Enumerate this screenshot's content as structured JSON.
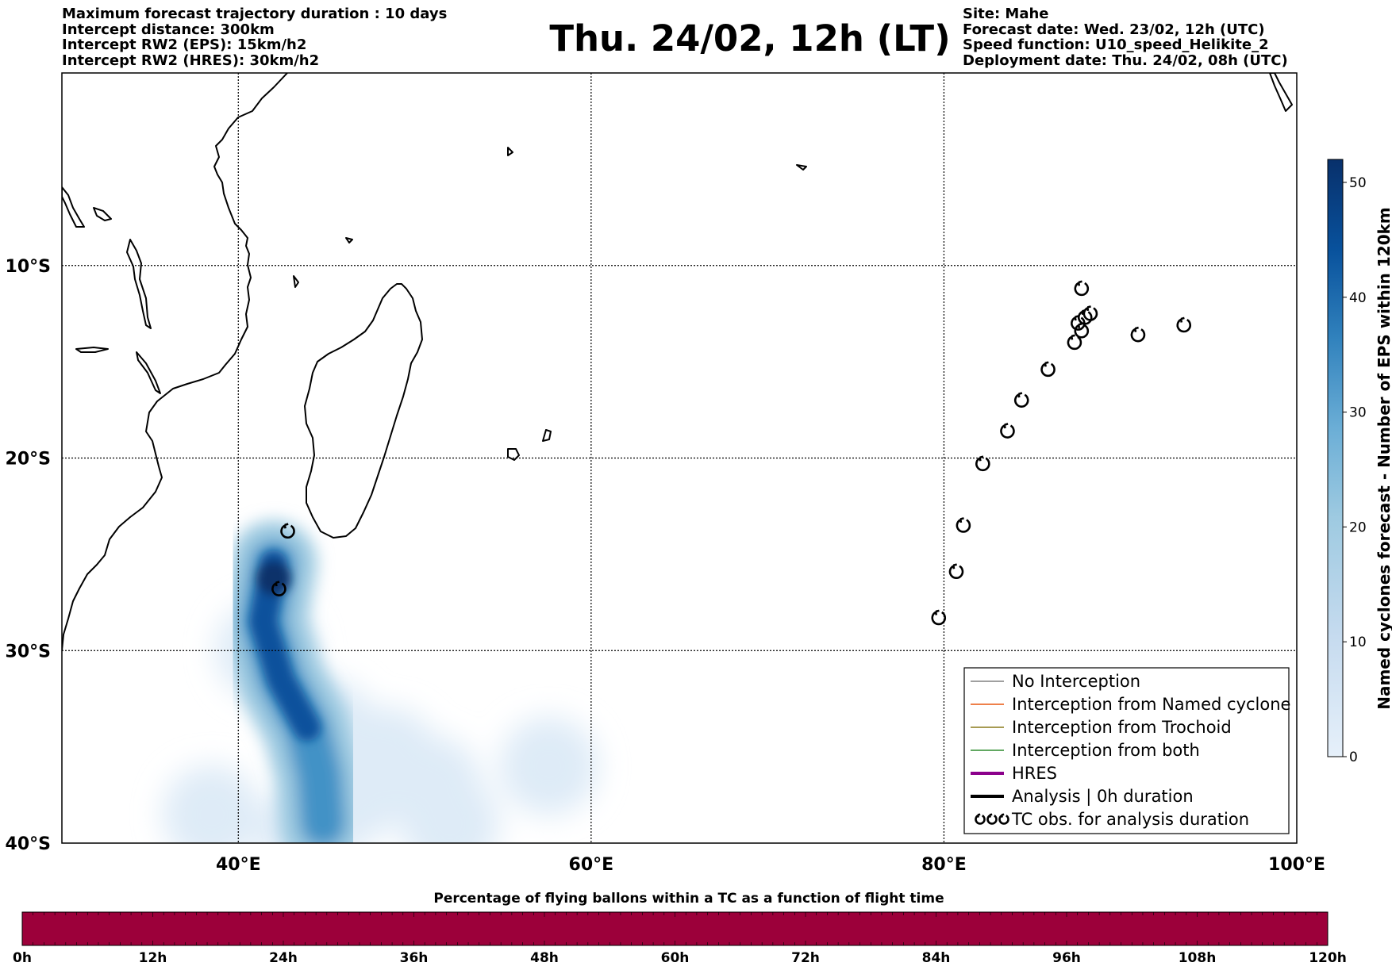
{
  "header": {
    "left": [
      "Maximum forecast trajectory duration : 10 days",
      "Intercept distance: 300km",
      "Intercept RW2 (EPS):  15km/h2",
      "Intercept RW2 (HRES): 30km/h2"
    ],
    "title": "Thu. 24/02, 12h (LT)",
    "right": [
      "Site: Mahe",
      "Forecast date: Wed. 23/02, 12h (UTC)",
      "Speed function: U10_speed_Helikite_2",
      "Deployment date: Thu. 24/02, 08h (UTC)"
    ]
  },
  "map": {
    "lon_range": [
      30,
      100
    ],
    "lat_range": [
      -40,
      0
    ],
    "lon_ticks": [
      {
        "value": 40,
        "label": "40°E"
      },
      {
        "value": 60,
        "label": "60°E"
      },
      {
        "value": 80,
        "label": "80°E"
      },
      {
        "value": 100,
        "label": "100°E"
      }
    ],
    "lat_ticks": [
      {
        "value": -10,
        "label": "10°S"
      },
      {
        "value": -20,
        "label": "20°S"
      },
      {
        "value": -30,
        "label": "30°S"
      },
      {
        "value": -40,
        "label": "40°S"
      }
    ],
    "grid": true,
    "tc_observations": [
      {
        "lon": 42.8,
        "lat": -23.8
      },
      {
        "lon": 42.3,
        "lat": -26.8
      },
      {
        "lon": 87.8,
        "lat": -11.2
      },
      {
        "lon": 87.6,
        "lat": -13.0
      },
      {
        "lon": 88.0,
        "lat": -12.7
      },
      {
        "lon": 88.3,
        "lat": -12.5
      },
      {
        "lon": 87.8,
        "lat": -13.4
      },
      {
        "lon": 87.4,
        "lat": -14.0
      },
      {
        "lon": 91.0,
        "lat": -13.6
      },
      {
        "lon": 93.6,
        "lat": -13.1
      },
      {
        "lon": 85.9,
        "lat": -15.4
      },
      {
        "lon": 84.4,
        "lat": -17.0
      },
      {
        "lon": 83.6,
        "lat": -18.6
      },
      {
        "lon": 82.2,
        "lat": -20.3
      },
      {
        "lon": 81.1,
        "lat": -23.5
      },
      {
        "lon": 80.7,
        "lat": -25.9
      },
      {
        "lon": 79.7,
        "lat": -28.3
      }
    ],
    "density": {
      "core_path": [
        [
          42.0,
          -25.5
        ],
        [
          41.4,
          -28.5
        ],
        [
          42.4,
          -31.5
        ],
        [
          43.9,
          -34.0
        ],
        [
          44.6,
          -36.5
        ],
        [
          44.8,
          -39.0
        ]
      ],
      "outer_blobs": [
        [
          41.5,
          -30.0
        ],
        [
          45.0,
          -34.0
        ],
        [
          46.5,
          -37.5
        ],
        [
          48.5,
          -35.5
        ],
        [
          52.0,
          -39.0
        ],
        [
          51.0,
          -37.0
        ],
        [
          57.6,
          -36.0
        ],
        [
          38.5,
          -38.5
        ],
        [
          44.0,
          -39.5
        ]
      ]
    },
    "colorbar": {
      "label": "Named cyclones forecast - Number of EPS within 120km",
      "min": 0,
      "max": 52,
      "ticks": [
        0,
        10,
        20,
        30,
        40,
        50
      ],
      "color_low": "#e6f0fa",
      "color_high": "#08306b"
    },
    "legend": [
      {
        "label": "No Interception",
        "color": "#808080",
        "style": "thin"
      },
      {
        "label": "Interception from Named cyclone",
        "color": "#e8560e",
        "style": "thin"
      },
      {
        "label": "Interception from Trochoid",
        "color": "#8a7a1a",
        "style": "thin"
      },
      {
        "label": "Interception from both",
        "color": "#2e8b2e",
        "style": "thin"
      },
      {
        "label": "HRES",
        "color": "#8b008b",
        "style": "thick"
      },
      {
        "label": "Analysis | 0h duration",
        "color": "#000000",
        "style": "thick"
      },
      {
        "label": "TC obs. for analysis duration",
        "color": "#000000",
        "style": "tc"
      }
    ]
  },
  "flight_bar": {
    "title": "Percentage of flying ballons within a TC as a function of flight time",
    "color": "#9c003a",
    "ticks": [
      "0h",
      "12h",
      "24h",
      "36h",
      "48h",
      "60h",
      "72h",
      "84h",
      "96h",
      "108h",
      "120h"
    ]
  }
}
